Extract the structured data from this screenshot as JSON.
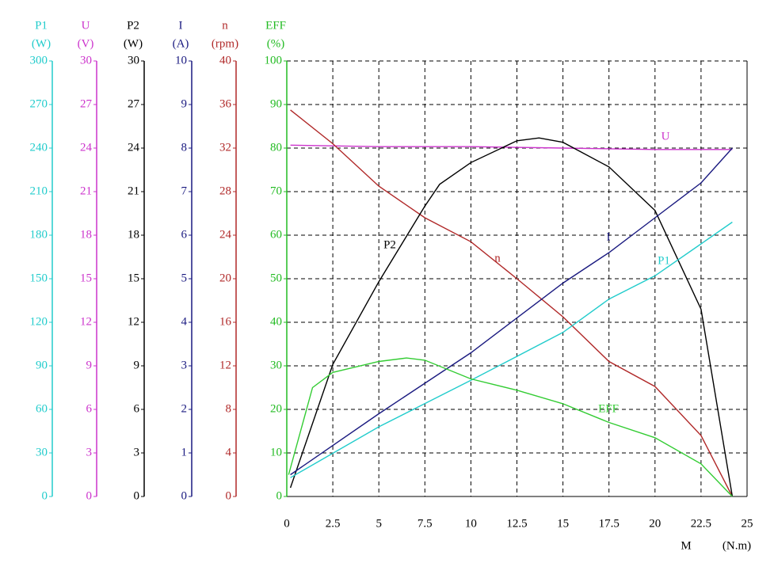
{
  "chart_data": {
    "type": "line",
    "x_label": "M",
    "x_unit": "(N.m)",
    "xlim": [
      0,
      25
    ],
    "xticks": [
      0,
      2.5,
      5,
      7.5,
      10,
      12.5,
      15,
      17.5,
      20,
      22.5,
      25
    ],
    "grid": true,
    "axes": [
      {
        "name": "P1",
        "unit": "(W)",
        "color": "#22cccc",
        "lim": [
          0,
          300
        ],
        "ticks": [
          0,
          30,
          60,
          90,
          120,
          150,
          180,
          210,
          240,
          270,
          300
        ]
      },
      {
        "name": "U",
        "unit": "(V)",
        "color": "#cc33cc",
        "lim": [
          0,
          30
        ],
        "ticks": [
          0,
          3,
          6,
          9,
          12,
          15,
          18,
          21,
          24,
          27,
          30
        ]
      },
      {
        "name": "P2",
        "unit": "(W)",
        "color": "#000000",
        "lim": [
          0,
          30
        ],
        "ticks": [
          0,
          3,
          6,
          9,
          12,
          15,
          18,
          21,
          24,
          27,
          30
        ]
      },
      {
        "name": "I",
        "unit": "(A)",
        "color": "#1a1a80",
        "lim": [
          0,
          10
        ],
        "ticks": [
          0,
          1,
          2,
          3,
          4,
          5,
          6,
          7,
          8,
          9,
          10
        ]
      },
      {
        "name": "n",
        "unit": "(rpm)",
        "color": "#b02828",
        "lim": [
          0,
          40
        ],
        "ticks": [
          0,
          4,
          8,
          12,
          16,
          20,
          24,
          28,
          32,
          36,
          40
        ]
      },
      {
        "name": "EFF",
        "unit": "(%)",
        "color": "#22bb22",
        "lim": [
          0,
          100
        ],
        "ticks": [
          0,
          10,
          20,
          30,
          40,
          50,
          60,
          70,
          80,
          90,
          100
        ]
      }
    ],
    "series": [
      {
        "name": "U",
        "axis": 1,
        "color": "#cc33cc",
        "x": [
          0.2,
          5,
          10,
          15,
          20,
          24.2
        ],
        "values": [
          24.2,
          24.1,
          24.1,
          24.0,
          23.9,
          23.9
        ]
      },
      {
        "name": "n",
        "axis": 4,
        "color": "#b02828",
        "x": [
          0.2,
          2.5,
          5,
          7.5,
          10,
          12.5,
          15,
          17.5,
          20,
          22.5,
          24.2
        ],
        "values": [
          35.5,
          32.4,
          28.5,
          25.6,
          23.4,
          20.0,
          16.5,
          12.4,
          10.1,
          5.6,
          0
        ]
      },
      {
        "name": "P2",
        "axis": 2,
        "color": "#000000",
        "x": [
          0.2,
          2.5,
          5,
          7.5,
          8.3,
          10,
          12.5,
          13.7,
          15,
          17.5,
          20,
          22.5,
          24.2
        ],
        "values": [
          0.6,
          9.1,
          14.8,
          20.0,
          21.5,
          23.0,
          24.5,
          24.7,
          24.4,
          22.7,
          19.7,
          12.9,
          0
        ]
      },
      {
        "name": "I",
        "axis": 3,
        "color": "#1a1a80",
        "x": [
          0.2,
          5,
          10,
          15,
          17.5,
          20,
          22.5,
          24.2
        ],
        "values": [
          0.5,
          1.9,
          3.3,
          4.9,
          5.6,
          6.4,
          7.2,
          8.0
        ]
      },
      {
        "name": "P1",
        "axis": 0,
        "color": "#22cccc",
        "x": [
          0.2,
          5,
          10,
          15,
          17.5,
          20,
          22.5,
          24.2
        ],
        "values": [
          13,
          48,
          80,
          113,
          136,
          152,
          174,
          189
        ]
      },
      {
        "name": "EFF",
        "axis": 5,
        "color": "#33cc33",
        "x": [
          0.1,
          1.4,
          2.5,
          5,
          6.5,
          7.5,
          10,
          12.5,
          15,
          17.5,
          20,
          22.5,
          24.2
        ],
        "values": [
          5,
          25,
          28.5,
          31,
          31.8,
          31.3,
          27,
          24.4,
          21.3,
          17,
          13.5,
          7.5,
          0
        ]
      }
    ]
  }
}
